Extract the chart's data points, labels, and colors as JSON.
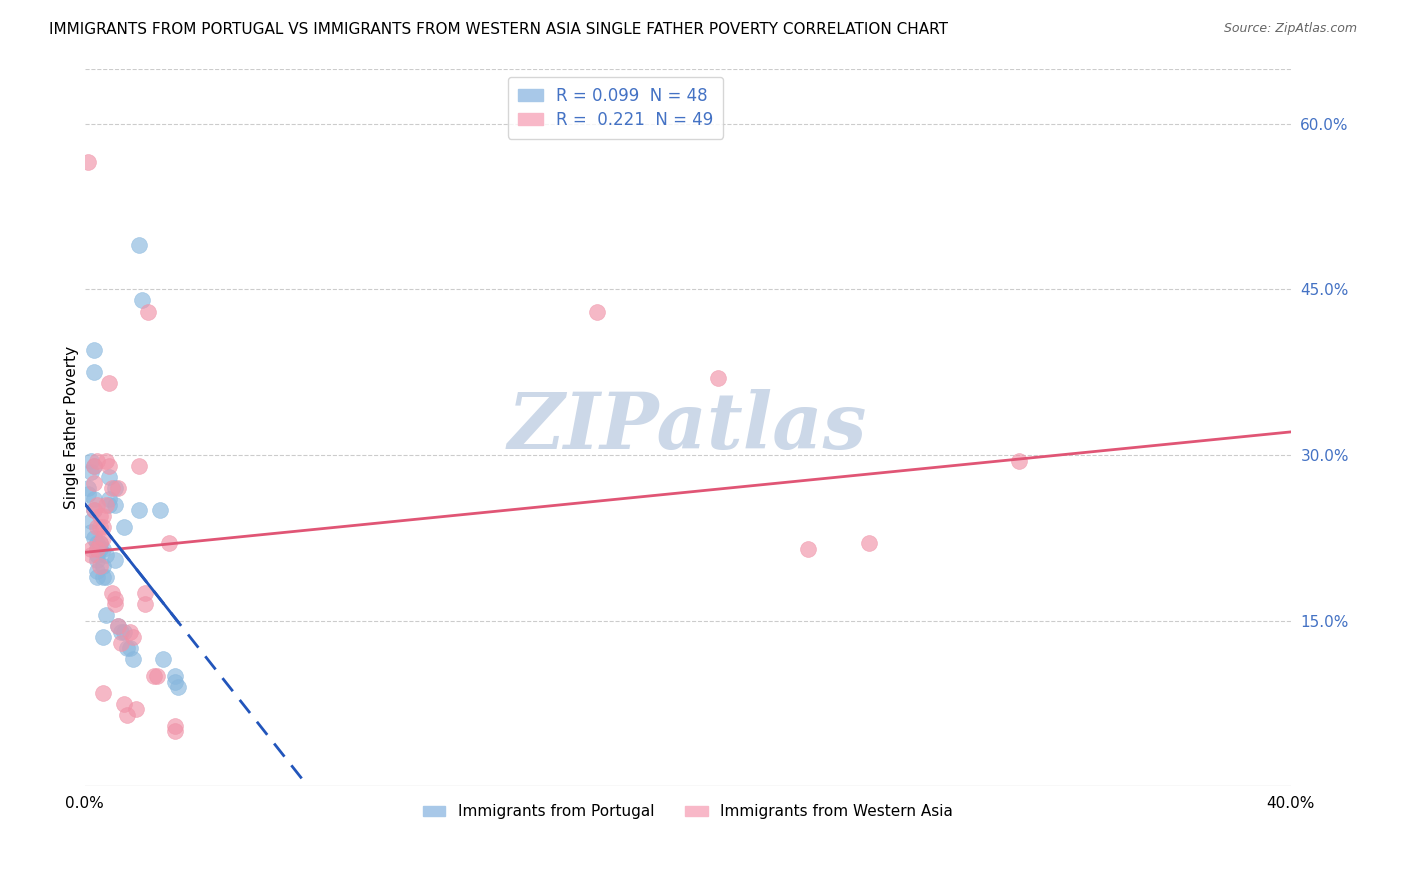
{
  "title": "IMMIGRANTS FROM PORTUGAL VS IMMIGRANTS FROM WESTERN ASIA SINGLE FATHER POVERTY CORRELATION CHART",
  "source": "Source: ZipAtlas.com",
  "ylabel": "Single Father Poverty",
  "right_yticks": [
    "15.0%",
    "30.0%",
    "45.0%",
    "60.0%"
  ],
  "right_ytick_vals": [
    0.15,
    0.3,
    0.45,
    0.6
  ],
  "xlim": [
    0.0,
    0.4
  ],
  "ylim": [
    0.0,
    0.65
  ],
  "portugal_color": "#89b8de",
  "western_asia_color": "#f093a8",
  "portugal_line_color": "#2255bb",
  "western_asia_line_color": "#e05575",
  "portugal_line_style": "--",
  "western_asia_line_style": "-",
  "watermark": "ZIPatlas",
  "watermark_color": "#ccd8e8",
  "background_color": "#ffffff",
  "grid_color": "#cccccc",
  "title_fontsize": 11,
  "axis_label_fontsize": 11,
  "tick_fontsize": 11,
  "portugal_scatter": [
    [
      0.001,
      0.27
    ],
    [
      0.001,
      0.265
    ],
    [
      0.002,
      0.295
    ],
    [
      0.002,
      0.285
    ],
    [
      0.002,
      0.24
    ],
    [
      0.002,
      0.23
    ],
    [
      0.003,
      0.395
    ],
    [
      0.003,
      0.375
    ],
    [
      0.003,
      0.29
    ],
    [
      0.003,
      0.26
    ],
    [
      0.003,
      0.25
    ],
    [
      0.003,
      0.225
    ],
    [
      0.004,
      0.215
    ],
    [
      0.004,
      0.205
    ],
    [
      0.004,
      0.195
    ],
    [
      0.004,
      0.19
    ],
    [
      0.004,
      0.22
    ],
    [
      0.004,
      0.21
    ],
    [
      0.005,
      0.22
    ],
    [
      0.005,
      0.215
    ],
    [
      0.006,
      0.215
    ],
    [
      0.006,
      0.2
    ],
    [
      0.006,
      0.19
    ],
    [
      0.006,
      0.135
    ],
    [
      0.007,
      0.21
    ],
    [
      0.007,
      0.19
    ],
    [
      0.007,
      0.155
    ],
    [
      0.008,
      0.28
    ],
    [
      0.008,
      0.26
    ],
    [
      0.008,
      0.255
    ],
    [
      0.01,
      0.27
    ],
    [
      0.01,
      0.255
    ],
    [
      0.01,
      0.205
    ],
    [
      0.011,
      0.145
    ],
    [
      0.012,
      0.14
    ],
    [
      0.013,
      0.235
    ],
    [
      0.013,
      0.14
    ],
    [
      0.014,
      0.125
    ],
    [
      0.015,
      0.125
    ],
    [
      0.016,
      0.115
    ],
    [
      0.018,
      0.25
    ],
    [
      0.018,
      0.49
    ],
    [
      0.019,
      0.44
    ],
    [
      0.025,
      0.25
    ],
    [
      0.026,
      0.115
    ],
    [
      0.03,
      0.1
    ],
    [
      0.03,
      0.095
    ],
    [
      0.031,
      0.09
    ]
  ],
  "western_asia_scatter": [
    [
      0.001,
      0.565
    ],
    [
      0.002,
      0.215
    ],
    [
      0.002,
      0.21
    ],
    [
      0.003,
      0.29
    ],
    [
      0.003,
      0.275
    ],
    [
      0.003,
      0.25
    ],
    [
      0.004,
      0.295
    ],
    [
      0.004,
      0.255
    ],
    [
      0.004,
      0.235
    ],
    [
      0.004,
      0.215
    ],
    [
      0.005,
      0.245
    ],
    [
      0.005,
      0.235
    ],
    [
      0.005,
      0.22
    ],
    [
      0.005,
      0.2
    ],
    [
      0.006,
      0.245
    ],
    [
      0.006,
      0.235
    ],
    [
      0.006,
      0.225
    ],
    [
      0.006,
      0.085
    ],
    [
      0.007,
      0.295
    ],
    [
      0.007,
      0.255
    ],
    [
      0.008,
      0.365
    ],
    [
      0.008,
      0.29
    ],
    [
      0.009,
      0.27
    ],
    [
      0.009,
      0.175
    ],
    [
      0.01,
      0.17
    ],
    [
      0.01,
      0.165
    ],
    [
      0.011,
      0.27
    ],
    [
      0.011,
      0.145
    ],
    [
      0.012,
      0.13
    ],
    [
      0.013,
      0.075
    ],
    [
      0.014,
      0.065
    ],
    [
      0.015,
      0.14
    ],
    [
      0.016,
      0.135
    ],
    [
      0.017,
      0.07
    ],
    [
      0.018,
      0.29
    ],
    [
      0.02,
      0.175
    ],
    [
      0.02,
      0.165
    ],
    [
      0.021,
      0.43
    ],
    [
      0.023,
      0.1
    ],
    [
      0.024,
      0.1
    ],
    [
      0.028,
      0.22
    ],
    [
      0.03,
      0.055
    ],
    [
      0.03,
      0.05
    ],
    [
      0.17,
      0.43
    ],
    [
      0.21,
      0.37
    ],
    [
      0.24,
      0.215
    ],
    [
      0.26,
      0.22
    ],
    [
      0.31,
      0.295
    ]
  ]
}
